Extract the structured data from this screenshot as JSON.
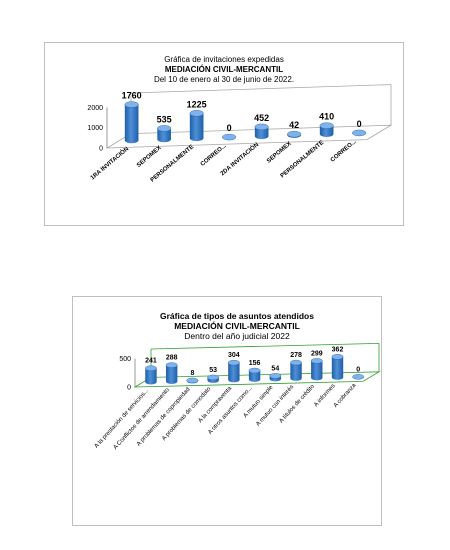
{
  "chart_data": [
    {
      "type": "bar",
      "title": "Gráfica de invitaciones expedidas",
      "subtitle": "MEDIACIÓN CIVIL-MERCANTIL",
      "caption": "Del  10  de enero al 30 de junio de 2022.",
      "categories": [
        "1RA INVITACIÓN",
        "SEPOMEX",
        "PERSONALMENTE",
        "CORREO...",
        "2DA INVITACIÓN",
        "SEPOMEX",
        "PERSONALMENTE",
        "CORREO..."
      ],
      "values": [
        1760,
        535,
        1225,
        0,
        452,
        42,
        410,
        0
      ],
      "value_labels": [
        "1760",
        "535",
        "1225",
        "0",
        "452",
        "42",
        "410",
        "0"
      ],
      "ylim": [
        0,
        2000
      ],
      "yticks": [
        "0",
        "1000",
        "2000"
      ],
      "grid": false,
      "legend": "none",
      "colors": {
        "bar": "#4f8fd8",
        "bar_dark": "#1f5fa8",
        "floor": "#a6a6a6"
      }
    },
    {
      "type": "bar",
      "title": "Gráfica de tipos de asuntos atendidos",
      "subtitle": "MEDIACIÓN CIVIL-MERCANTIL",
      "caption": "Dentro del año judicial 2022",
      "categories": [
        "A la prestación de servicios...",
        "A Conflictos de arrendamiento",
        "A problemas de copropiedad",
        "A problemas de comodato",
        "A la compraventa",
        "A otros asuntos como...",
        "A mutuo simple",
        "A mutuo con interés",
        "A títulos de crédito",
        "A informes",
        "A cobranza"
      ],
      "values": [
        241,
        288,
        8,
        53,
        304,
        156,
        54,
        278,
        299,
        362,
        0
      ],
      "value_labels": [
        "241",
        "288",
        "8",
        "53",
        "304",
        "156",
        "54",
        "278",
        "299",
        "362",
        "0"
      ],
      "ylim": [
        0,
        500
      ],
      "yticks": [
        "0",
        "500"
      ],
      "grid": false,
      "legend": "none",
      "colors": {
        "bar": "#4f8fd8",
        "bar_dark": "#1f5fa8",
        "floor": "#2e9e2e"
      }
    }
  ]
}
